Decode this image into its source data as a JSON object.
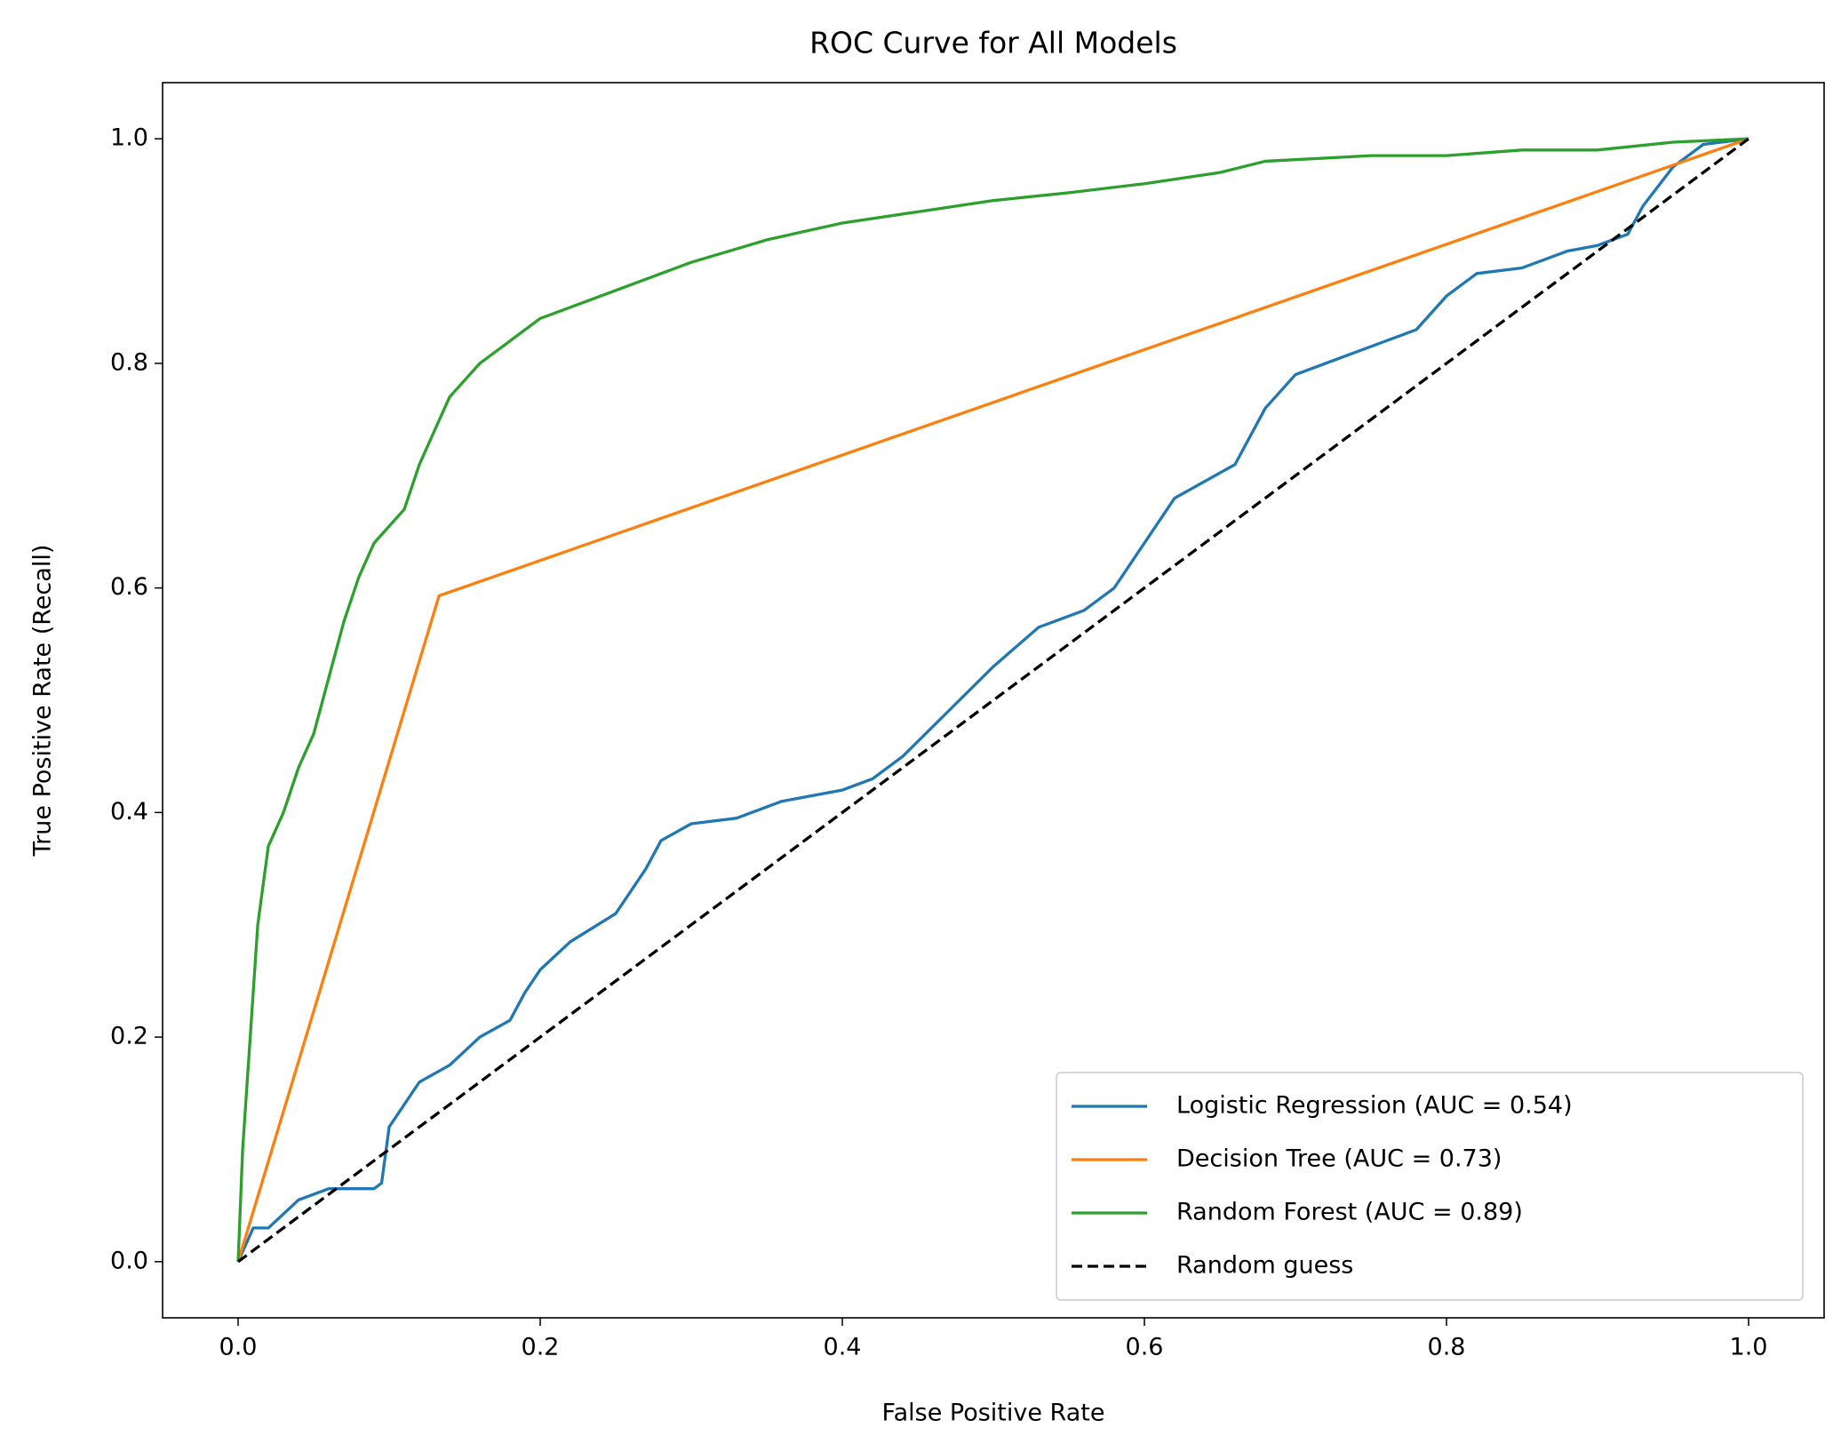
{
  "chart_data": {
    "type": "line",
    "title": "ROC Curve for All Models",
    "xlabel": "False Positive Rate",
    "ylabel": "True Positive Rate (Recall)",
    "xlim": [
      -0.05,
      1.05
    ],
    "ylim": [
      -0.05,
      1.05
    ],
    "xticks": [
      {
        "value": 0,
        "label": "0.0"
      },
      0.2,
      0.4,
      0.6,
      0.8,
      {
        "value": 1,
        "label": "1.0"
      }
    ],
    "yticks": [
      {
        "value": 0,
        "label": "0.0"
      },
      0.2,
      0.4,
      0.6,
      0.8,
      {
        "value": 1,
        "label": "1.0"
      }
    ],
    "grid": false,
    "legend": "lower right",
    "series": [
      {
        "name": "Logistic Regression (AUC = 0.54)",
        "color": "#1f77b4",
        "linestyle": "solid",
        "x": [
          0,
          0.01,
          0.02,
          0.04,
          0.06,
          0.09,
          0.095,
          0.1,
          0.12,
          0.14,
          0.16,
          0.18,
          0.19,
          0.2,
          0.22,
          0.25,
          0.27,
          0.28,
          0.3,
          0.33,
          0.36,
          0.4,
          0.42,
          0.44,
          0.47,
          0.5,
          0.53,
          0.56,
          0.58,
          0.6,
          0.62,
          0.66,
          0.68,
          0.7,
          0.73,
          0.76,
          0.78,
          0.8,
          0.82,
          0.85,
          0.88,
          0.9,
          0.92,
          0.93,
          0.95,
          0.97,
          1
        ],
        "values": [
          0,
          0.03,
          0.03,
          0.055,
          0.065,
          0.065,
          0.07,
          0.12,
          0.16,
          0.175,
          0.2,
          0.215,
          0.24,
          0.26,
          0.285,
          0.31,
          0.35,
          0.375,
          0.39,
          0.395,
          0.41,
          0.42,
          0.43,
          0.45,
          0.49,
          0.53,
          0.565,
          0.58,
          0.6,
          0.64,
          0.68,
          0.71,
          0.76,
          0.79,
          0.805,
          0.82,
          0.83,
          0.86,
          0.88,
          0.885,
          0.9,
          0.905,
          0.915,
          0.94,
          0.975,
          0.995,
          1
        ]
      },
      {
        "name": "Decision Tree (AUC = 0.73)",
        "color": "#ff7f0e",
        "linestyle": "solid",
        "x": [
          0,
          0.133,
          1
        ],
        "values": [
          0,
          0.593,
          1
        ]
      },
      {
        "name": "Random Forest (AUC = 0.89)",
        "color": "#2ca02c",
        "linestyle": "solid",
        "x": [
          0,
          0.003,
          0.008,
          0.013,
          0.02,
          0.03,
          0.04,
          0.05,
          0.06,
          0.07,
          0.08,
          0.09,
          0.1,
          0.11,
          0.12,
          0.13,
          0.14,
          0.16,
          0.18,
          0.2,
          0.25,
          0.3,
          0.35,
          0.4,
          0.45,
          0.5,
          0.55,
          0.6,
          0.65,
          0.68,
          0.75,
          0.8,
          0.85,
          0.9,
          0.95,
          1
        ],
        "values": [
          0,
          0.1,
          0.2,
          0.3,
          0.37,
          0.4,
          0.44,
          0.47,
          0.52,
          0.57,
          0.61,
          0.64,
          0.655,
          0.67,
          0.71,
          0.74,
          0.77,
          0.8,
          0.82,
          0.84,
          0.865,
          0.89,
          0.91,
          0.925,
          0.935,
          0.945,
          0.952,
          0.96,
          0.97,
          0.98,
          0.985,
          0.985,
          0.99,
          0.99,
          0.997,
          1
        ]
      },
      {
        "name": "Random guess",
        "color": "#000000",
        "linestyle": "dashed",
        "x": [
          0,
          1
        ],
        "values": [
          0,
          1
        ]
      }
    ]
  }
}
